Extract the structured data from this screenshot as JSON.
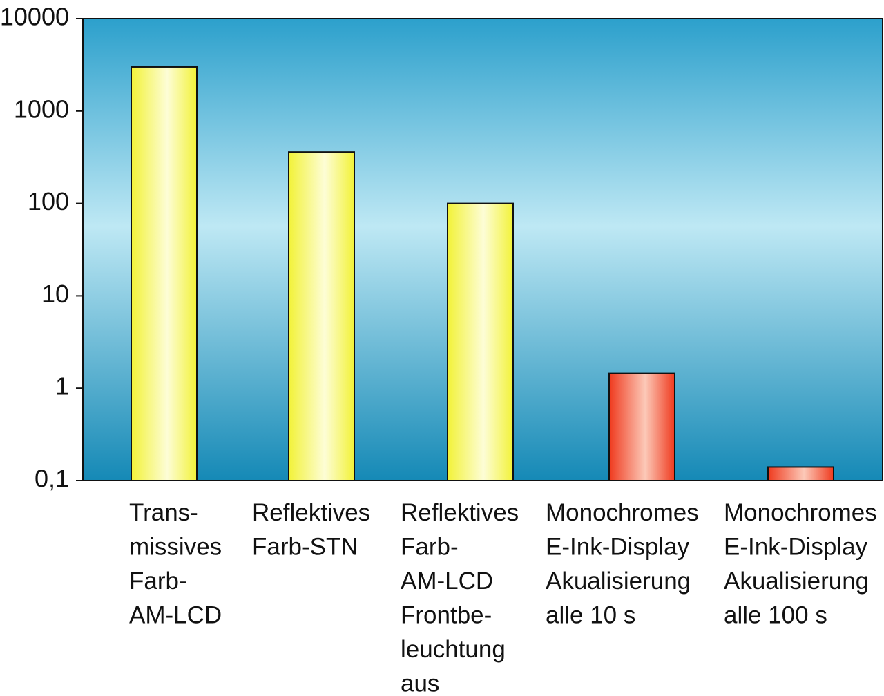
{
  "chart_data": {
    "type": "bar",
    "title": "",
    "xlabel": "",
    "ylabel": "",
    "yscale": "log",
    "ylim": [
      0.1,
      10000
    ],
    "grid": false,
    "y_ticks": [
      "10000",
      "1000",
      "100",
      "10",
      "1",
      "0,1"
    ],
    "y_tick_values": [
      10000,
      1000,
      100,
      10,
      1,
      0.1
    ],
    "categories": [
      [
        "Trans-",
        "missives",
        "Farb-",
        "AM-LCD"
      ],
      [
        "Reflektives",
        "Farb-STN"
      ],
      [
        "Reflektives",
        "Farb-",
        "AM-LCD",
        "Frontbe-",
        "leuchtung",
        "aus"
      ],
      [
        "Monochromes",
        "E-Ink-Display",
        "Akualisierung",
        "alle 10 s"
      ],
      [
        "Monochromes",
        "E-Ink-Display",
        "Akualisierung",
        "alle 100 s"
      ]
    ],
    "values": [
      3000,
      360,
      100,
      1.45,
      0.14
    ],
    "bar_colors": [
      "yellow",
      "yellow",
      "yellow",
      "red",
      "red"
    ],
    "colors": {
      "yellow_edge": "#f2f238",
      "yellow_mid": "#fdfdd6",
      "red_edge": "#ef3a1e",
      "red_mid": "#fcc9b8",
      "bg_top": "#2ca0cc",
      "bg_mid": "#bee8f4",
      "bg_bottom": "#1589b6",
      "frame": "#111111"
    }
  }
}
